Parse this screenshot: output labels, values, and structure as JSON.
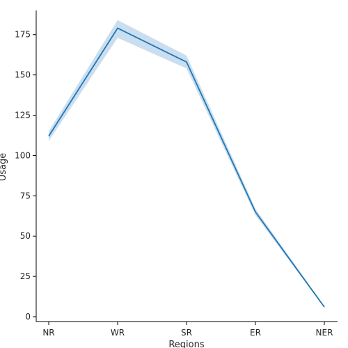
{
  "chart_data": {
    "type": "line",
    "title": "",
    "xlabel": "Regions",
    "ylabel": "Usage",
    "categories": [
      "NR",
      "WR",
      "SR",
      "ER",
      "NER"
    ],
    "series": [
      {
        "values": [
          112,
          179,
          158,
          65,
          6
        ],
        "ci_lower": [
          109,
          173,
          154,
          63,
          5.5
        ],
        "ci_upper": [
          115,
          184,
          162,
          67,
          6.5
        ],
        "color": "#1f77b4",
        "band_color": "#a6c8e4"
      }
    ],
    "ylim": [
      -3,
      190
    ],
    "yticks": [
      0,
      25,
      50,
      75,
      100,
      125,
      150,
      175
    ],
    "grid": false,
    "legend": "none"
  }
}
